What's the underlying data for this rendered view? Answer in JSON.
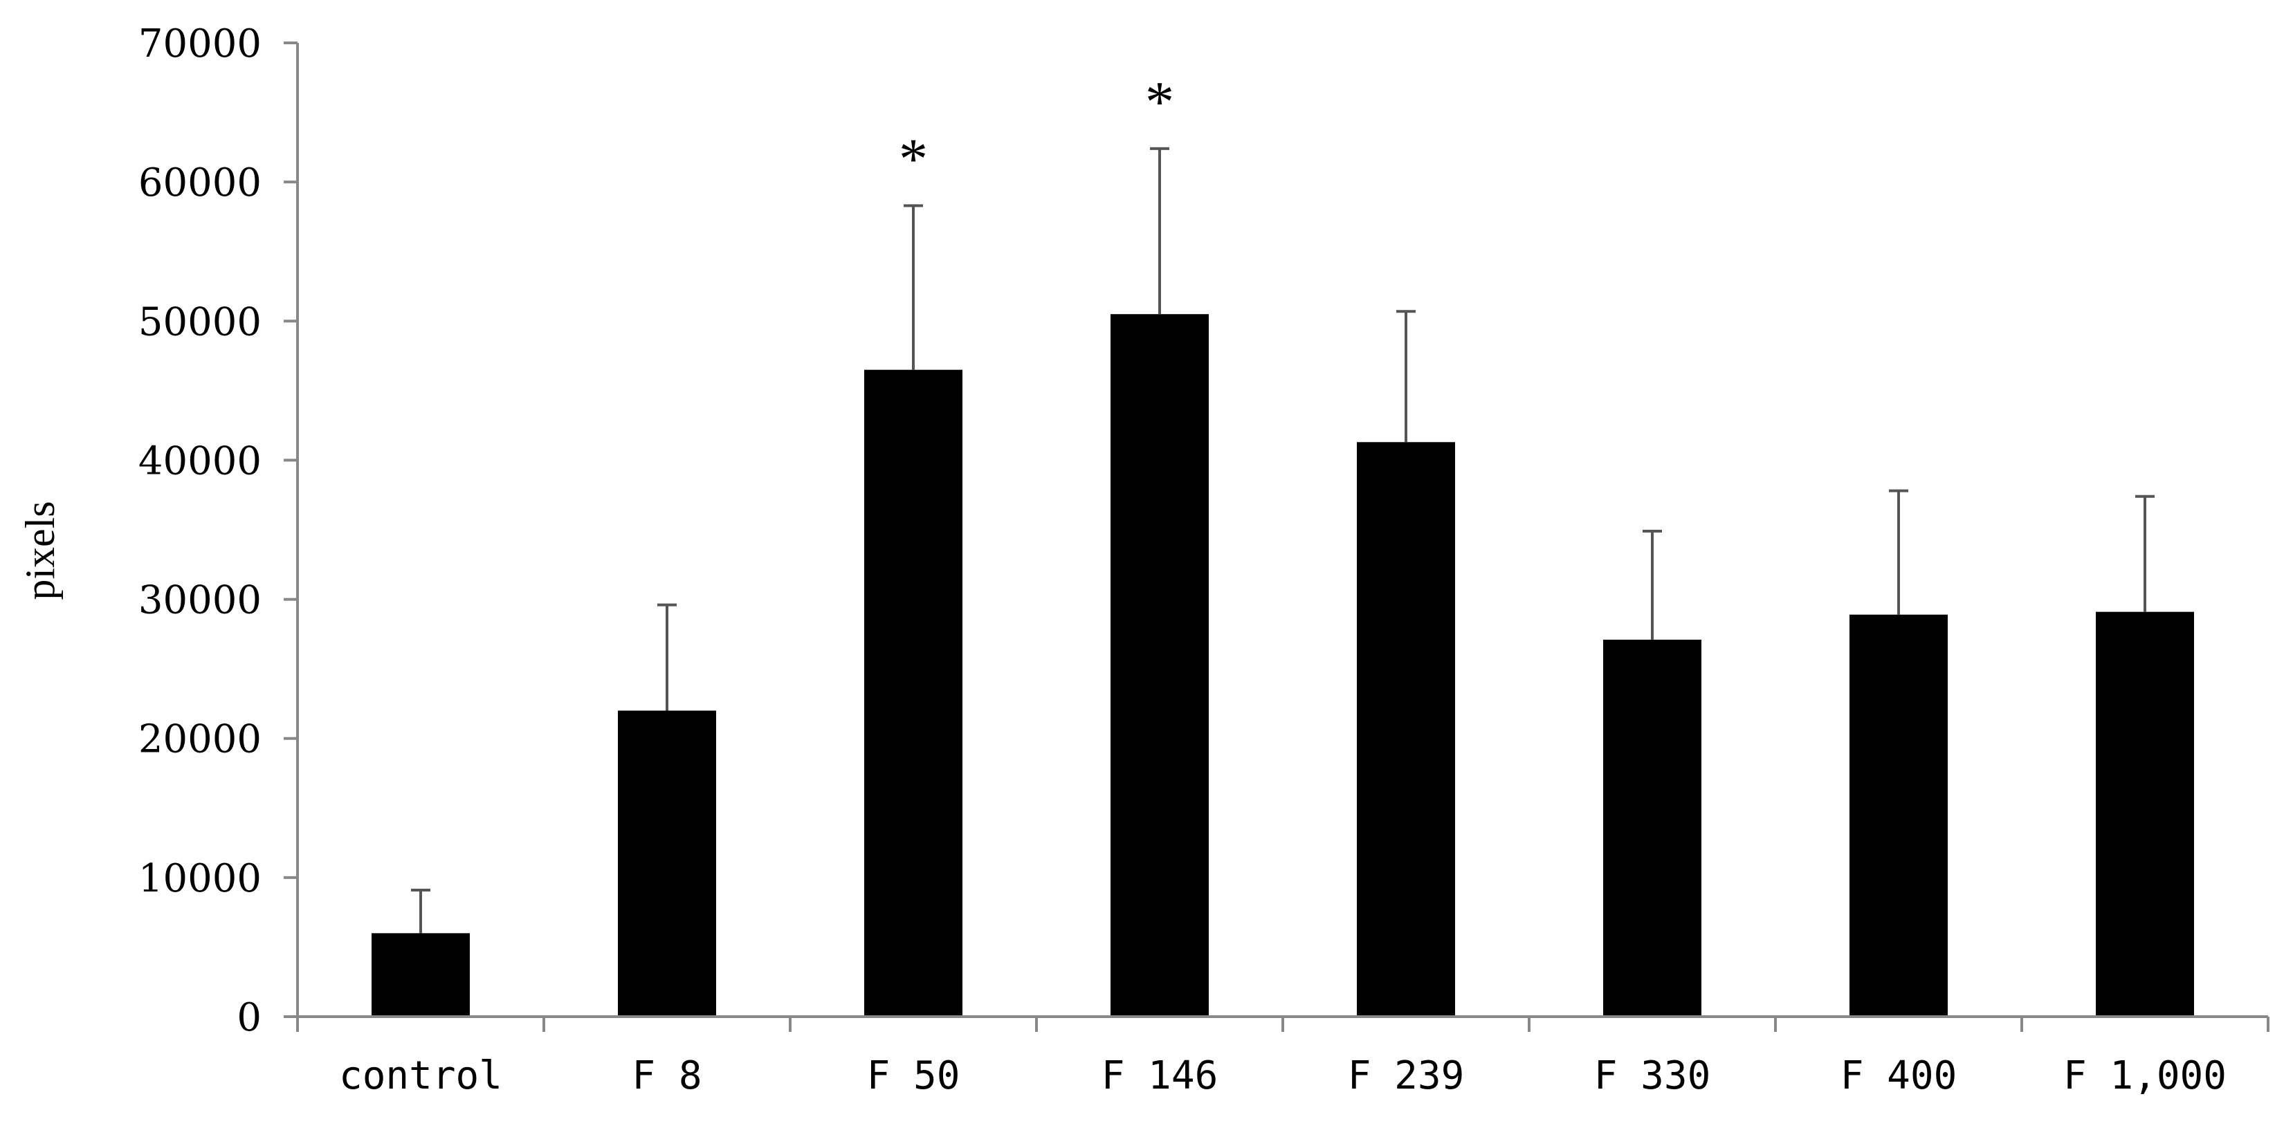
{
  "chart_data": {
    "type": "bar",
    "categories": [
      "control",
      "F 8",
      "F 50",
      "F 146",
      "F 239",
      "F 330",
      "F 400",
      "F 1,000"
    ],
    "values": [
      6000,
      22000,
      46500,
      50500,
      41300,
      27100,
      28900,
      29100
    ],
    "error_upper": [
      9100,
      29600,
      58300,
      62400,
      50700,
      34900,
      37800,
      37400
    ],
    "annotations": [
      "",
      "",
      "*",
      "*",
      "",
      "",
      "",
      ""
    ],
    "ylabel": "pixels",
    "xlabel": "",
    "ylim": [
      0,
      70000
    ],
    "yticks": [
      0,
      10000,
      20000,
      30000,
      40000,
      50000,
      60000,
      70000
    ],
    "ytick_labels": [
      "0",
      "10000",
      "20000",
      "30000",
      "40000",
      "50000",
      "60000",
      "70000"
    ],
    "grid": false,
    "bar_color": "#000000",
    "axis_color": "#888888"
  }
}
